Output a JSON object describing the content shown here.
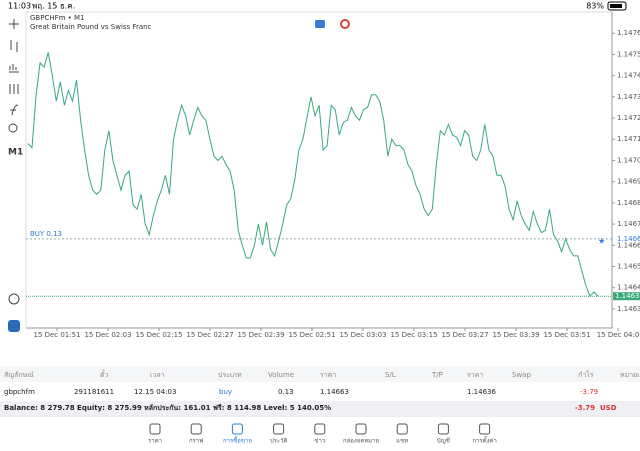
{
  "status": {
    "time": "11:03",
    "date": "พฤ. 15 ธ.ค.",
    "battery": "83%"
  },
  "toolbar": {
    "timeframe": "M1"
  },
  "chart": {
    "type": "line",
    "symbol": "GBPCHFm • M1",
    "description": "Great Britain Pound vs Swiss Franc",
    "color": "#3aa87a",
    "ylim": [
      1.14621,
      1.1477
    ],
    "yticks": [
      {
        "value": 1.1476,
        "label": "1.14760"
      },
      {
        "value": 1.1475,
        "label": "1.14750"
      },
      {
        "value": 1.1474,
        "label": "1.14740"
      },
      {
        "value": 1.1473,
        "label": "1.14730"
      },
      {
        "value": 1.1472,
        "label": "1.14720"
      },
      {
        "value": 1.1471,
        "label": "1.14710"
      },
      {
        "value": 1.147,
        "label": "1.14700"
      },
      {
        "value": 1.1469,
        "label": "1.14690"
      },
      {
        "value": 1.1468,
        "label": "1.14680"
      },
      {
        "value": 1.1467,
        "label": "1.14670"
      },
      {
        "value": 1.1466,
        "label": "1.14660"
      },
      {
        "value": 1.1465,
        "label": "1.14650"
      },
      {
        "value": 1.1464,
        "label": "1.14640"
      },
      {
        "value": 1.1463,
        "label": "1.14630"
      }
    ],
    "xticks": [
      "15 Dec 01:51",
      "15 Dec 02:03",
      "15 Dec 02:15",
      "15 Dec 02:27",
      "15 Dec 02:39",
      "15 Dec 02:51",
      "15 Dec 03:03",
      "15 Dec 03:15",
      "15 Dec 03:27",
      "15 Dec 03:39",
      "15 Dec 03:51",
      "15 Dec 04:0"
    ],
    "buy_line": {
      "label": "BUY 0.13",
      "price": {
        "value": 1.14663,
        "label": "1.14663"
      }
    },
    "current_price": {
      "value": 1.14636,
      "label": "1.14636"
    },
    "values": [
      1.14708,
      1.14706,
      1.14731,
      1.14746,
      1.14744,
      1.14751,
      1.1474,
      1.14728,
      1.14737,
      1.14726,
      1.14733,
      1.14728,
      1.14738,
      1.14719,
      1.14705,
      1.14693,
      1.14686,
      1.14684,
      1.14686,
      1.14705,
      1.14714,
      1.147,
      1.14693,
      1.14686,
      1.14693,
      1.14695,
      1.14679,
      1.14677,
      1.14684,
      1.1467,
      1.14665,
      1.14674,
      1.14681,
      1.14686,
      1.14693,
      1.14684,
      1.1471,
      1.14719,
      1.14726,
      1.14721,
      1.14712,
      1.14719,
      1.14725,
      1.14721,
      1.14719,
      1.1471,
      1.14702,
      1.147,
      1.14702,
      1.14698,
      1.14695,
      1.14686,
      1.14667,
      1.1466,
      1.14654,
      1.14654,
      1.1466,
      1.1467,
      1.1466,
      1.14671,
      1.14658,
      1.14655,
      1.14662,
      1.1467,
      1.14679,
      1.14682,
      1.14691,
      1.14705,
      1.1471,
      1.1472,
      1.1473,
      1.14721,
      1.14726,
      1.14705,
      1.14707,
      1.14726,
      1.14724,
      1.14712,
      1.14718,
      1.14719,
      1.14725,
      1.14721,
      1.14719,
      1.14724,
      1.14725,
      1.14731,
      1.14731,
      1.14728,
      1.14719,
      1.14702,
      1.1471,
      1.14707,
      1.14707,
      1.14705,
      1.14698,
      1.14695,
      1.14688,
      1.14684,
      1.14677,
      1.14674,
      1.14677,
      1.14698,
      1.14714,
      1.14712,
      1.14717,
      1.14712,
      1.14711,
      1.14707,
      1.14714,
      1.14712,
      1.14702,
      1.147,
      1.14705,
      1.14717,
      1.14705,
      1.14702,
      1.14693,
      1.14693,
      1.14688,
      1.14677,
      1.14672,
      1.14681,
      1.14674,
      1.1467,
      1.14667,
      1.14676,
      1.1467,
      1.14666,
      1.14667,
      1.14677,
      1.14665,
      1.14662,
      1.14657,
      1.14663,
      1.14658,
      1.14655,
      1.14655,
      1.14648,
      1.14641,
      1.14636,
      1.14638,
      1.14636
    ]
  },
  "table": {
    "columns": [
      "สัญลักษณ์",
      "ตั๋ว",
      "เวลา",
      "ประเภท",
      "Volume",
      "ราคา",
      "S/L",
      "T/P",
      "ราคา",
      "Swap",
      "กำไร",
      "หมายเหตุ"
    ],
    "rows": [
      [
        "gbpchfm",
        "291181611",
        "12.15 04:03",
        "buy",
        "0.13",
        "1.14663",
        "",
        "",
        "1.14636",
        "",
        "-3.79",
        ""
      ]
    ]
  },
  "balance": {
    "text": "Balance: 8 279.78 Equity: 8 275.99 หลักประกัน: 161.01 ฟรี: 8 114.98 Level: 5 140.05%",
    "profit": "-3.79",
    "currency": "USD"
  },
  "nav": {
    "items": [
      "ราคา",
      "กราฟ",
      "การซื้อขาย",
      "ประวัติ",
      "ข่าว",
      "กล่องจดหมาย",
      "แชท",
      "บัญชี",
      "การตั้งค่า"
    ],
    "active": 2
  }
}
